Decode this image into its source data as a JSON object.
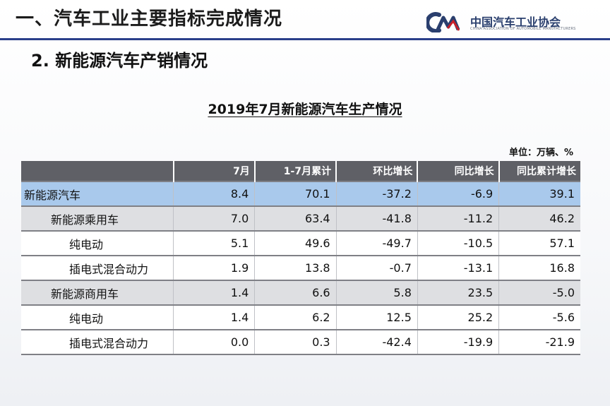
{
  "header": {
    "title": "一、汽车工业主要指标完成情况",
    "logo_cn": "中国汽车工业协会",
    "logo_en": "CHINA ASSOCIATION OF AUTOMOBILE MANUFACTURERS",
    "brand_color": "#2a3f8a"
  },
  "section": {
    "title": "2. 新能源汽车产销情况"
  },
  "table": {
    "title": "2019年7月新能源汽车生产情况",
    "unit": "单位：万辆、%",
    "columns": [
      "",
      "7月",
      "1-7月累计",
      "环比增长",
      "同比增长",
      "同比累计增长"
    ],
    "rows": [
      {
        "level": 0,
        "cells": [
          "新能源汽车",
          "8.4",
          "70.1",
          "-37.2",
          "-6.9",
          "39.1"
        ]
      },
      {
        "level": 1,
        "cells": [
          "新能源乘用车",
          "7.0",
          "63.4",
          "-41.8",
          "-11.2",
          "46.2"
        ]
      },
      {
        "level": 2,
        "cells": [
          "纯电动",
          "5.1",
          "49.6",
          "-49.7",
          "-10.5",
          "57.1"
        ]
      },
      {
        "level": 2,
        "cells": [
          "插电式混合动力",
          "1.9",
          "13.8",
          "-0.7",
          "-13.1",
          "16.8"
        ]
      },
      {
        "level": 1,
        "cells": [
          "新能源商用车",
          "1.4",
          "6.6",
          "5.8",
          "23.5",
          "-5.0"
        ]
      },
      {
        "level": 2,
        "cells": [
          "纯电动",
          "1.4",
          "6.2",
          "12.5",
          "25.2",
          "-5.6"
        ]
      },
      {
        "level": 2,
        "cells": [
          "插电式混合动力",
          "0.0",
          "0.3",
          "-42.4",
          "-19.9",
          "-21.9"
        ]
      }
    ],
    "colors": {
      "header_bg": "#5f6066",
      "total_row_bg": "#a9c9ec",
      "subtotal_row_bg": "#dedfe2"
    }
  }
}
